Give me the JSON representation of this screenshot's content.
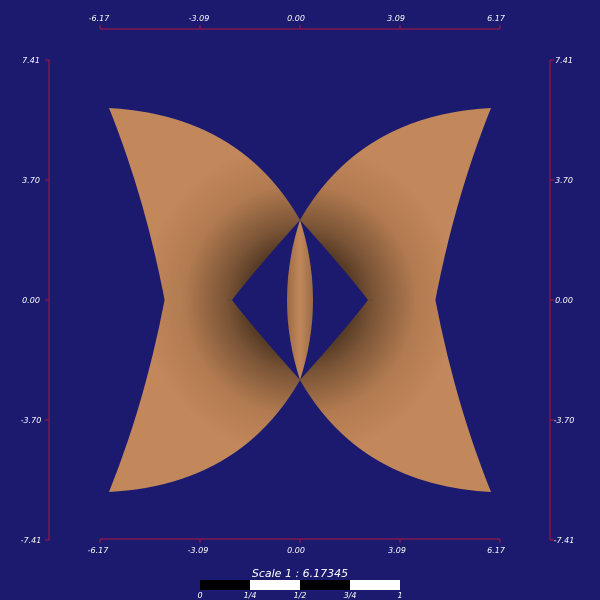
{
  "colors": {
    "background": "#1b1a6e",
    "axis": "#b0143c",
    "surface": "#c2875a",
    "surface_dark": "#000000",
    "label": "#ffffff",
    "scalebar_dark": "#000000",
    "scalebar_light": "#ffffff"
  },
  "axes": {
    "x_ticks": [
      "-6.17",
      "-3.09",
      "0.00",
      "3.09",
      "6.17"
    ],
    "y_ticks": [
      "7.41",
      "3.70",
      "0.00",
      "-3.70",
      "-7.41"
    ]
  },
  "scale": {
    "title": "Scale 1 : 6.17345",
    "labels": [
      "0",
      "1/4",
      "1/2",
      "3/4",
      "1"
    ]
  },
  "icons": {
    "shape": "four-petal-surface"
  }
}
